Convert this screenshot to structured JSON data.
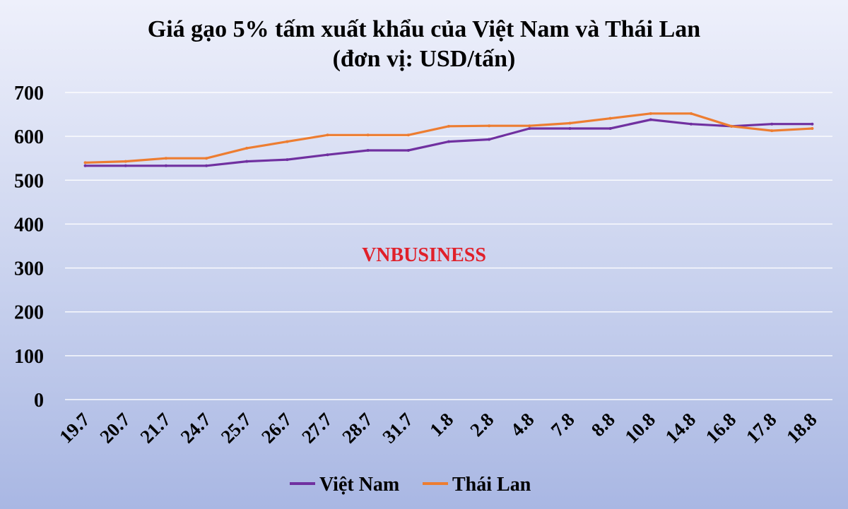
{
  "chart_data": {
    "type": "line",
    "title": "Giá gạo 5% tấm xuất khẩu của Việt Nam và Thái Lan",
    "subtitle": "(đơn vị: USD/tấn)",
    "watermark": "VNBUSINESS",
    "categories": [
      "19.7",
      "20.7",
      "21.7",
      "24.7",
      "25.7",
      "26.7",
      "27.7",
      "28.7",
      "31.7",
      "1.8",
      "2.8",
      "4.8",
      "7.8",
      "8.8",
      "10.8",
      "14.8",
      "16.8",
      "17.8",
      "18.8"
    ],
    "ylim": [
      0,
      700
    ],
    "yticks": [
      0,
      100,
      200,
      300,
      400,
      500,
      600,
      700
    ],
    "grid": true,
    "legend_position": "bottom",
    "series": [
      {
        "name": "Việt Nam",
        "color": "#7030a0",
        "values": [
          533,
          533,
          533,
          533,
          543,
          547,
          558,
          568,
          568,
          588,
          593,
          618,
          618,
          618,
          638,
          628,
          623,
          628,
          628
        ]
      },
      {
        "name": "Thái Lan",
        "color": "#ed7d31",
        "values": [
          540,
          543,
          550,
          550,
          573,
          588,
          603,
          603,
          603,
          623,
          624,
          624,
          630,
          641,
          652,
          652,
          623,
          613,
          618
        ]
      }
    ]
  }
}
